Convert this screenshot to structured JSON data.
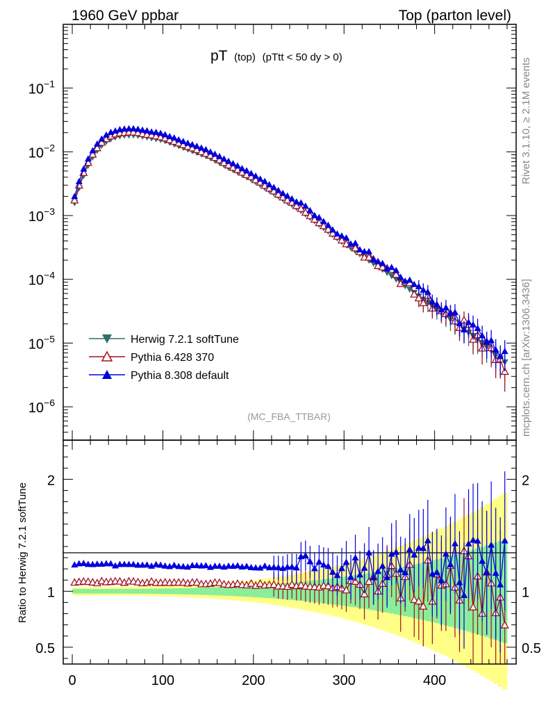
{
  "header": {
    "left": "1960 GeV ppbar",
    "right": "Top (parton level)"
  },
  "side": {
    "rivet": "Rivet 3.1.10, ≥ 2.1M events",
    "mcplots": "mcplots.cern.ch [arXiv:1306.3436]"
  },
  "chart_data": [
    {
      "type": "line",
      "title": "pT",
      "title_sub": "(top)",
      "title_cut": "(pTtt < 50 dy > 0)",
      "watermark": "(MC_FBA_TTBAR)",
      "xlim": [
        -10,
        490
      ],
      "ylim": [
        3e-07,
        1.0
      ],
      "yscale": "log",
      "yticks": [
        {
          "v": 1e-06,
          "base": "10",
          "exp": "−6"
        },
        {
          "v": 1e-05,
          "base": "10",
          "exp": "−5"
        },
        {
          "v": 0.0001,
          "base": "10",
          "exp": "−4"
        },
        {
          "v": 0.001,
          "base": "10",
          "exp": "−3"
        },
        {
          "v": 0.01,
          "base": "10",
          "exp": "−2"
        },
        {
          "v": 0.1,
          "base": "10",
          "exp": "−1"
        }
      ],
      "legend_placement": "bottom-left",
      "series": [
        {
          "name": "Herwig 7.2.1 softTune",
          "color": "#2e6e6e",
          "marker": "triangle-down"
        },
        {
          "name": "Pythia 6.428 370",
          "color": "#a01020",
          "marker": "triangle-up-open"
        },
        {
          "name": "Pythia 8.308 default",
          "color": "#0000dd",
          "marker": "triangle-up"
        }
      ],
      "reference_curve": {
        "peak_x": 70,
        "peak_y": 0.0185,
        "start_x": 2.5,
        "start_y": 0.0016,
        "decay_points": [
          [
            100,
            0.0155
          ],
          [
            150,
            0.0085
          ],
          [
            200,
            0.0036
          ],
          [
            250,
            0.00128
          ],
          [
            300,
            0.000372
          ],
          [
            350,
            0.000122
          ],
          [
            400,
            3.6e-05
          ],
          [
            450,
            1.1e-05
          ],
          [
            478,
            5e-06
          ]
        ]
      },
      "ratios": {
        "Pythia 6.428 370": 1.08,
        "Pythia 8.308 default": 1.24
      }
    },
    {
      "type": "line",
      "ylabel": "Ratio to Herwig 7.2.1 softTune",
      "xlim": [
        -10,
        490
      ],
      "ylim": [
        0.35,
        2.35
      ],
      "xticks": [
        0,
        100,
        200,
        300,
        400
      ],
      "yticks": [
        0.5,
        1,
        2
      ],
      "reference_line": 1
    }
  ]
}
